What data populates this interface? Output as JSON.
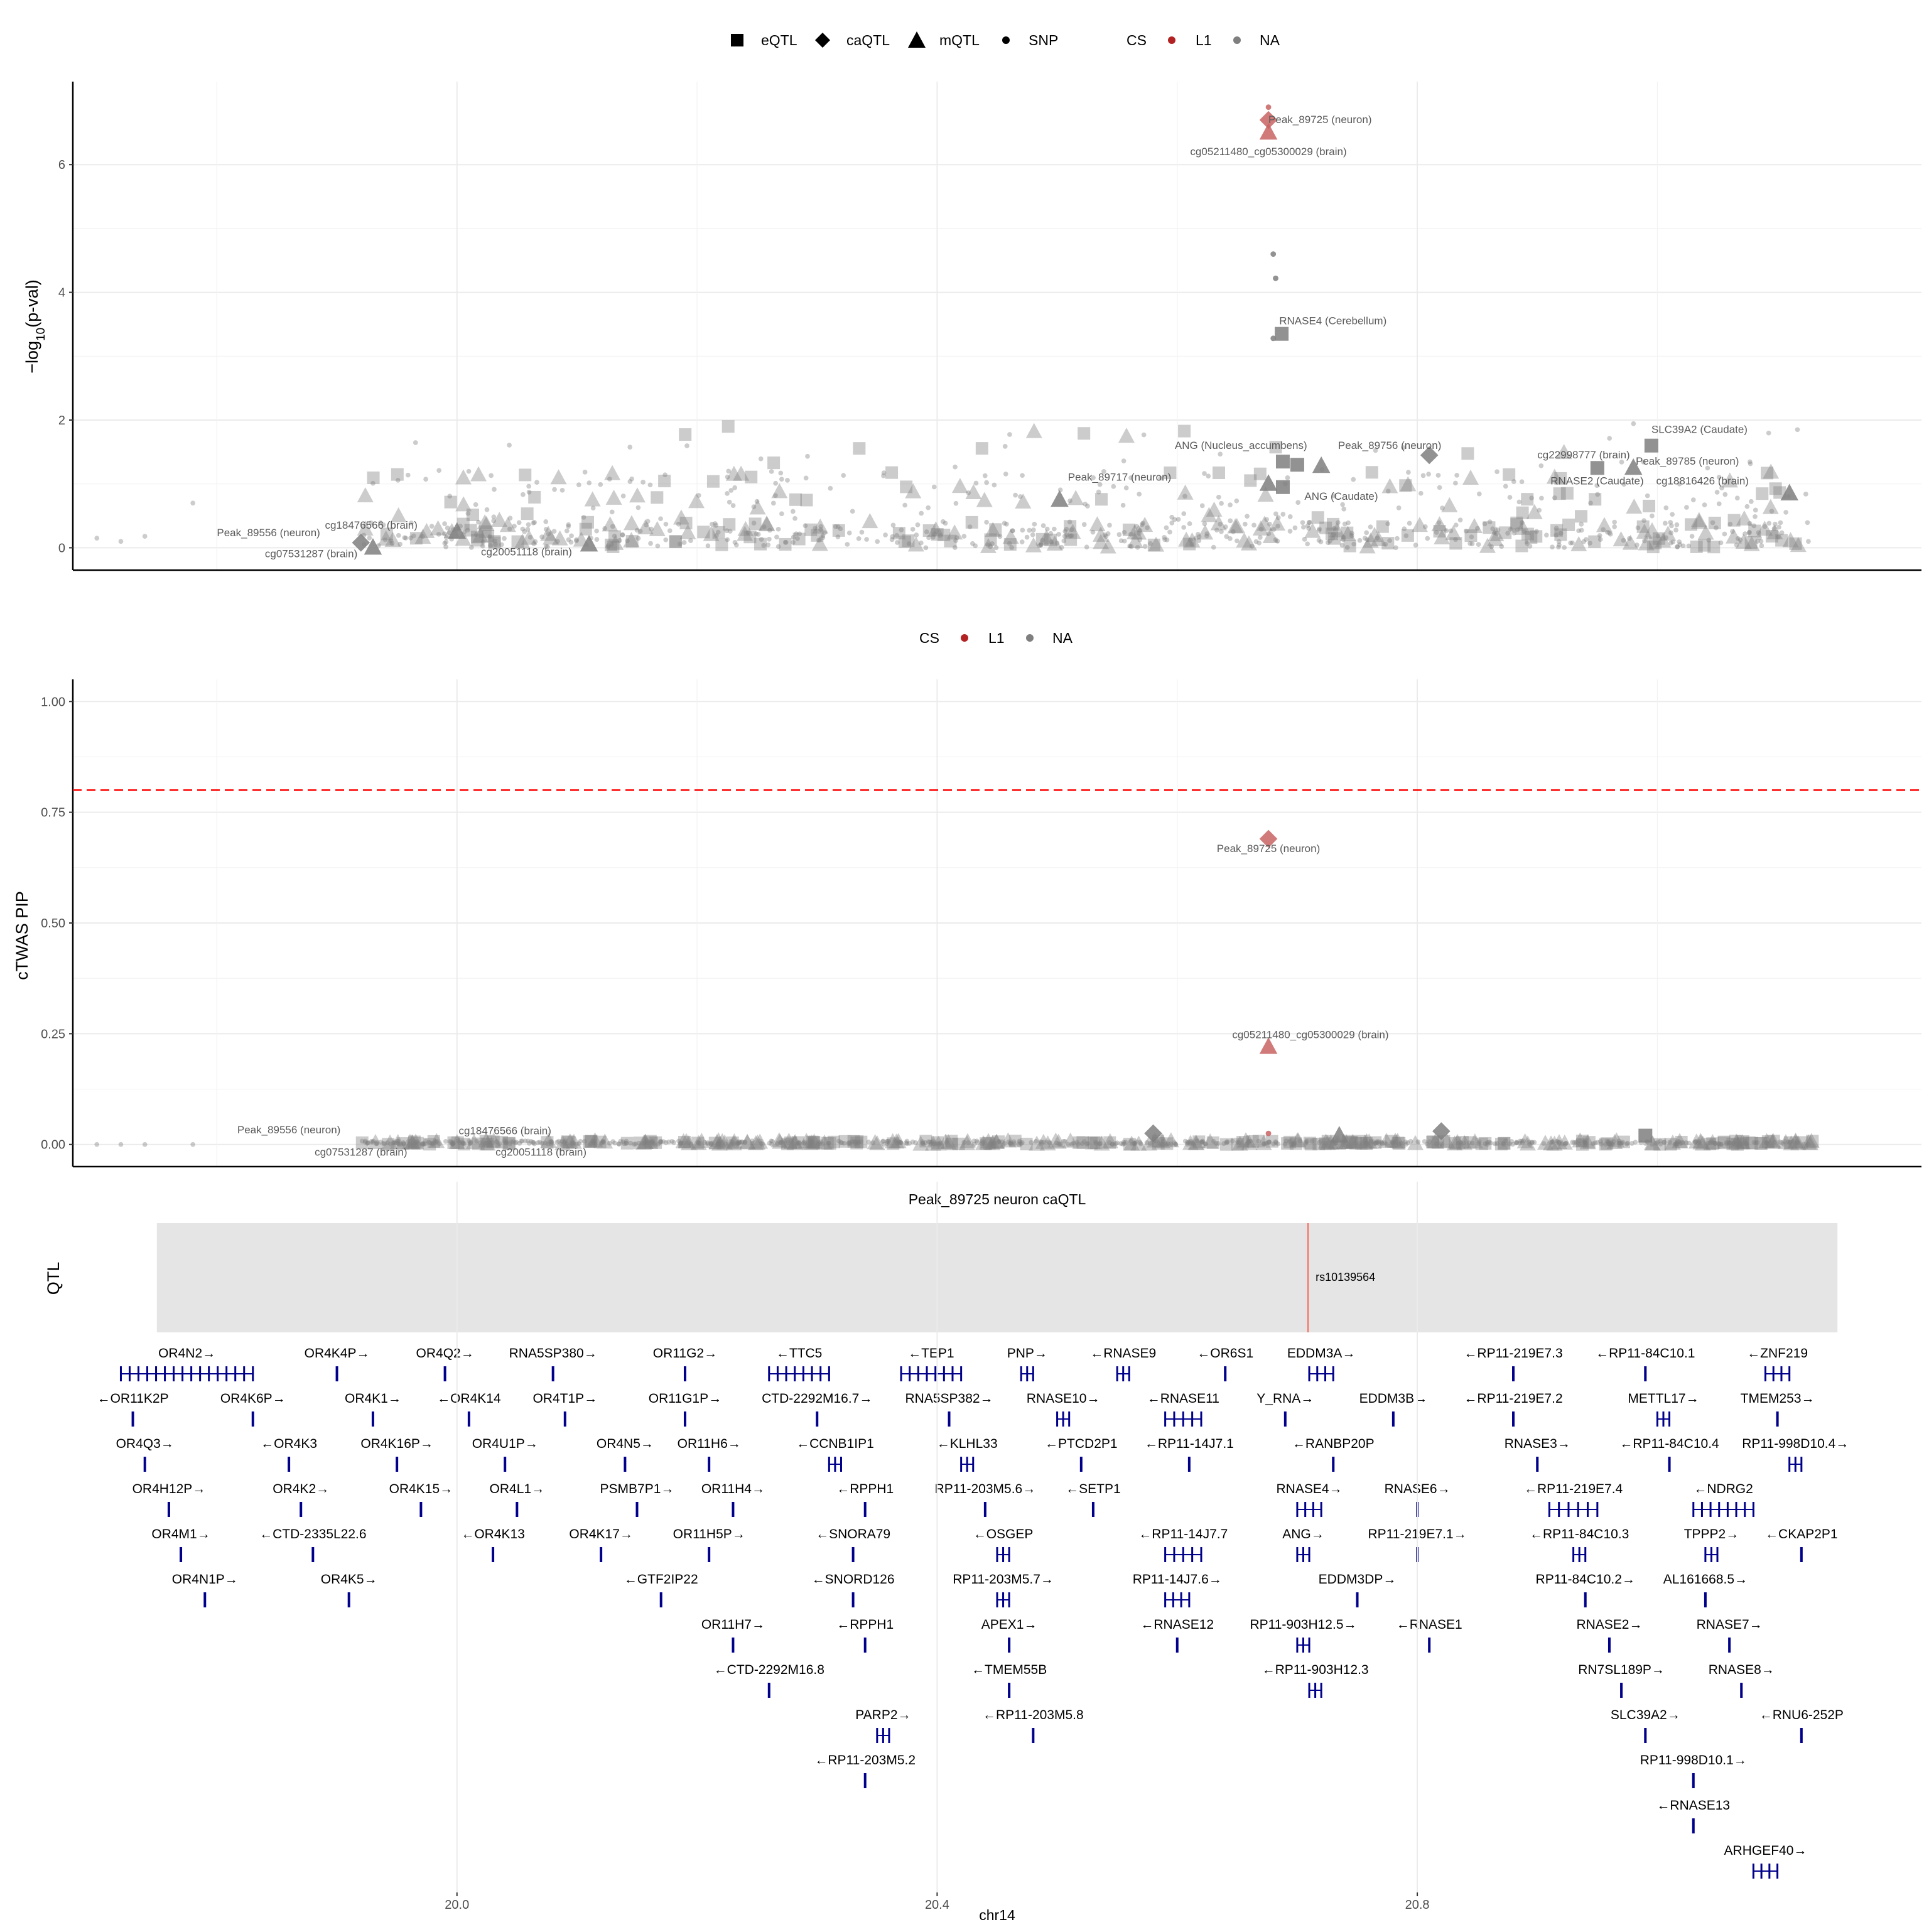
{
  "colors": {
    "cs_L1": "#b22222",
    "cs_NA": "#7f7f7f",
    "threshold": "#ff0000",
    "qtl_bg": "#e5e5e5",
    "gene": "#00008b",
    "grid": "#ebebeb"
  },
  "legend_top": {
    "shape_items": [
      {
        "shape": "square",
        "label": "eQTL"
      },
      {
        "shape": "diamond",
        "label": "caQTL"
      },
      {
        "shape": "triangle",
        "label": "mQTL"
      },
      {
        "shape": "circle",
        "label": "SNP"
      }
    ],
    "cs_title": "CS",
    "cs_items": [
      {
        "label": "L1",
        "color": "#b22222"
      },
      {
        "label": "NA",
        "color": "#7f7f7f"
      }
    ]
  },
  "legend_mid": {
    "cs_title": "CS",
    "cs_items": [
      {
        "label": "L1",
        "color": "#b22222"
      },
      {
        "label": "NA",
        "color": "#7f7f7f"
      }
    ]
  },
  "chart_data": [
    {
      "type": "scatter",
      "panel": "pval",
      "ylabel_main": "−log",
      "ylabel_sub": "10",
      "ylabel_end": "(p-val)",
      "xlim": [
        19.68,
        21.22
      ],
      "ylim": [
        -0.35,
        7.3
      ],
      "yticks": [
        0,
        2,
        4,
        6
      ],
      "ytick_labels": [
        "0",
        "2",
        "4",
        "6"
      ],
      "xgrid_major": [
        20.0,
        20.4,
        20.8
      ],
      "xgrid_minor": [
        19.8,
        20.2,
        20.6,
        21.0
      ],
      "grid": true,
      "labelled_points": [
        {
          "x": 20.676,
          "y": 6.9,
          "shape": "circle",
          "cs": "L1"
        },
        {
          "x": 20.676,
          "y": 6.7,
          "shape": "diamond",
          "cs": "L1"
        },
        {
          "x": 20.676,
          "y": 6.5,
          "shape": "triangle",
          "cs": "L1"
        },
        {
          "x": 20.68,
          "y": 4.6,
          "shape": "circle",
          "cs": "NA"
        },
        {
          "x": 20.682,
          "y": 4.22,
          "shape": "circle",
          "cs": "NA"
        },
        {
          "x": 20.687,
          "y": 3.35,
          "shape": "square",
          "cs": "NA"
        },
        {
          "x": 20.68,
          "y": 3.28,
          "shape": "circle",
          "cs": "NA"
        },
        {
          "x": 20.688,
          "y": 1.35,
          "shape": "square",
          "cs": "NA"
        },
        {
          "x": 20.676,
          "y": 1.0,
          "shape": "triangle",
          "cs": "NA"
        },
        {
          "x": 20.688,
          "y": 0.95,
          "shape": "square",
          "cs": "NA"
        },
        {
          "x": 20.502,
          "y": 0.75,
          "shape": "triangle",
          "cs": "NA"
        },
        {
          "x": 20.81,
          "y": 1.45,
          "shape": "diamond",
          "cs": "NA"
        },
        {
          "x": 20.995,
          "y": 1.6,
          "shape": "square",
          "cs": "NA"
        },
        {
          "x": 20.95,
          "y": 1.25,
          "shape": "square",
          "cs": "NA"
        },
        {
          "x": 20.98,
          "y": 1.25,
          "shape": "triangle",
          "cs": "NA"
        },
        {
          "x": 21.11,
          "y": 0.85,
          "shape": "triangle",
          "cs": "NA"
        },
        {
          "x": 20.72,
          "y": 1.28,
          "shape": "triangle",
          "cs": "NA"
        },
        {
          "x": 20.7,
          "y": 1.3,
          "shape": "square",
          "cs": "NA"
        },
        {
          "x": 19.92,
          "y": 0.08,
          "shape": "diamond",
          "cs": "NA"
        },
        {
          "x": 19.93,
          "y": 0.0,
          "shape": "triangle",
          "cs": "NA"
        },
        {
          "x": 20.0,
          "y": 0.25,
          "shape": "triangle",
          "cs": "NA"
        },
        {
          "x": 20.11,
          "y": 0.05,
          "shape": "triangle",
          "cs": "NA"
        }
      ],
      "annotations": [
        {
          "x": 20.676,
          "y": 6.65,
          "text": "Peak_89725 (neuron)",
          "anchor": "start"
        },
        {
          "x": 20.676,
          "y": 6.15,
          "text": "cg05211480_cg05300029 (brain)",
          "anchor": "middle"
        },
        {
          "x": 20.685,
          "y": 3.5,
          "text": "RNASE4 (Cerebellum)",
          "anchor": "start"
        },
        {
          "x": 20.598,
          "y": 1.55,
          "text": "ANG (Nucleus_accumbens)",
          "anchor": "start"
        },
        {
          "x": 20.734,
          "y": 1.55,
          "text": "Peak_89756 (neuron)",
          "anchor": "start"
        },
        {
          "x": 20.509,
          "y": 1.05,
          "text": "Peak_89717 (neuron)",
          "anchor": "start"
        },
        {
          "x": 20.706,
          "y": 0.75,
          "text": "ANG (Caudate)",
          "anchor": "start"
        },
        {
          "x": 20.9,
          "y": 1.4,
          "text": "cg22998777 (brain)",
          "anchor": "start"
        },
        {
          "x": 20.995,
          "y": 1.8,
          "text": "SLC39A2 (Caudate)",
          "anchor": "start"
        },
        {
          "x": 20.982,
          "y": 1.3,
          "text": "Peak_89785 (neuron)",
          "anchor": "start"
        },
        {
          "x": 20.911,
          "y": 0.99,
          "text": "RNASE2 (Caudate)",
          "anchor": "start"
        },
        {
          "x": 20.999,
          "y": 0.99,
          "text": "cg18816426 (brain)",
          "anchor": "start"
        },
        {
          "x": 19.8,
          "y": 0.18,
          "text": "Peak_89556 (neuron)",
          "anchor": "start"
        },
        {
          "x": 19.89,
          "y": 0.3,
          "text": "cg18476566 (brain)",
          "anchor": "start"
        },
        {
          "x": 19.84,
          "y": -0.15,
          "text": "cg07531287 (brain)",
          "anchor": "start"
        },
        {
          "x": 20.02,
          "y": -0.12,
          "text": "cg20051118 (brain)",
          "anchor": "start"
        }
      ]
    },
    {
      "type": "scatter",
      "panel": "pip",
      "ylabel": "cTWAS PIP",
      "xlim": [
        19.68,
        21.22
      ],
      "ylim": [
        -0.05,
        1.05
      ],
      "yticks": [
        0,
        0.25,
        0.5,
        0.75,
        1.0
      ],
      "ytick_labels": [
        "0.00",
        "0.25",
        "0.50",
        "0.75",
        "1.00"
      ],
      "threshold": 0.8,
      "grid": true,
      "labelled_points": [
        {
          "x": 20.676,
          "y": 0.69,
          "shape": "diamond",
          "cs": "L1"
        },
        {
          "x": 20.676,
          "y": 0.22,
          "shape": "triangle",
          "cs": "L1"
        },
        {
          "x": 20.676,
          "y": 0.025,
          "shape": "circle",
          "cs": "L1"
        },
        {
          "x": 20.58,
          "y": 0.025,
          "shape": "diamond",
          "cs": "NA"
        },
        {
          "x": 20.82,
          "y": 0.03,
          "shape": "diamond",
          "cs": "NA"
        },
        {
          "x": 20.735,
          "y": 0.02,
          "shape": "triangle",
          "cs": "NA"
        },
        {
          "x": 20.99,
          "y": 0.02,
          "shape": "square",
          "cs": "NA"
        }
      ],
      "annotations": [
        {
          "x": 20.676,
          "y": 0.66,
          "text": "Peak_89725 (neuron)",
          "anchor": "middle"
        },
        {
          "x": 20.711,
          "y": 0.24,
          "text": "cg05211480_cg05300029 (brain)",
          "anchor": "middle"
        },
        {
          "x": 19.86,
          "y": 0.025,
          "text": "Peak_89556 (neuron)",
          "anchor": "middle"
        },
        {
          "x": 20.04,
          "y": 0.023,
          "text": "cg18476566 (brain)",
          "anchor": "middle"
        },
        {
          "x": 19.92,
          "y": -0.025,
          "text": "cg07531287 (brain)",
          "anchor": "middle"
        },
        {
          "x": 20.07,
          "y": -0.025,
          "text": "cg20051118 (brain)",
          "anchor": "middle"
        }
      ]
    },
    {
      "type": "track",
      "panel": "qtl",
      "title": "Peak_89725 neuron caQTL",
      "ylabel": "QTL",
      "range": [
        19.75,
        21.15
      ],
      "snp_x": 20.709,
      "snp_label": "rs10139564"
    }
  ],
  "genes": {
    "rows": [
      [
        [
          "OR4N2→",
          19.72,
          19.83
        ],
        [
          "OR4K4P→",
          19.9,
          19.9
        ],
        [
          "OR4Q2→",
          19.99,
          19.99
        ],
        [
          "RNA5SP380→",
          20.08,
          20.08
        ],
        [
          "OR11G2→",
          20.19,
          20.19
        ],
        [
          "←TTC5",
          20.26,
          20.31
        ],
        [
          "←TEP1",
          20.37,
          20.42
        ],
        [
          "PNP→",
          20.47,
          20.48
        ],
        [
          "←RNASE9",
          20.55,
          20.56
        ],
        [
          "←OR6S1",
          20.64,
          20.64
        ],
        [
          "EDDM3A→",
          20.71,
          20.73
        ],
        [
          "←RP11-219E7.3",
          20.88,
          20.88
        ],
        [
          "←RP11-84C10.1",
          20.99,
          20.99
        ],
        [
          "←ZNF219",
          21.09,
          21.11
        ]
      ],
      [
        [
          "←OR11K2P",
          19.73,
          19.73
        ],
        [
          "OR4K6P→",
          19.83,
          19.83
        ],
        [
          "OR4K1→",
          19.93,
          19.93
        ],
        [
          "←OR4K14",
          20.01,
          20.01
        ],
        [
          "OR4T1P→",
          20.09,
          20.09
        ],
        [
          "OR11G1P→",
          20.19,
          20.19
        ],
        [
          "CTD-2292M16.7→",
          20.3,
          20.3
        ],
        [
          "RNA5SP382→",
          20.41,
          20.41
        ],
        [
          "RNASE10→",
          20.5,
          20.51
        ],
        [
          "←RNASE11",
          20.59,
          20.62
        ],
        [
          "Y_RNA→",
          20.69,
          20.69
        ],
        [
          "EDDM3B→",
          20.78,
          20.78
        ],
        [
          "←RP11-219E7.2",
          20.88,
          20.88
        ],
        [
          "METTL17→",
          21.0,
          21.01
        ],
        [
          "TMEM253→",
          21.1,
          21.1
        ]
      ],
      [
        [
          "OR4Q3→",
          19.74,
          19.74
        ],
        [
          "←OR4K3",
          19.86,
          19.86
        ],
        [
          "OR4K16P→",
          19.95,
          19.95
        ],
        [
          "OR4U1P→",
          20.04,
          20.04
        ],
        [
          "OR4N5→",
          20.14,
          20.14
        ],
        [
          "OR11H6→",
          20.21,
          20.21
        ],
        [
          "←CCNB1IP1",
          20.31,
          20.32
        ],
        [
          "←KLHL33",
          20.42,
          20.43
        ],
        [
          "←PTCD2P1",
          20.52,
          20.52
        ],
        [
          "←RP11-14J7.1",
          20.61,
          20.61
        ],
        [
          "←RANBP20P",
          20.73,
          20.73
        ],
        [
          "RNASE3→",
          20.9,
          20.9
        ],
        [
          "←RP11-84C10.4",
          21.01,
          21.01
        ],
        [
          "RP11-998D10.4→",
          21.11,
          21.12
        ]
      ],
      [
        [
          "OR4H12P→",
          19.76,
          19.76
        ],
        [
          "OR4K2→",
          19.87,
          19.87
        ],
        [
          "OR4K15→",
          19.97,
          19.97
        ],
        [
          "OR4L1→",
          20.05,
          20.05
        ],
        [
          "PSMB7P1→",
          20.15,
          20.15
        ],
        [
          "OR11H4→",
          20.23,
          20.23
        ],
        [
          "←RPPH1",
          20.34,
          20.34
        ],
        [
          "RP11-203M5.6→",
          20.44,
          20.44
        ],
        [
          "←SETP1",
          20.53,
          20.53
        ],
        [
          "RNASE4→",
          20.7,
          20.72
        ],
        [
          "RNASE6→",
          20.8,
          20.8
        ],
        [
          "←RP11-219E7.4",
          20.91,
          20.95
        ],
        [
          "←NDRG2",
          21.03,
          21.08
        ]
      ],
      [
        [
          "OR4M1→",
          19.77,
          19.77
        ],
        [
          "←CTD-2335L22.6",
          19.88,
          19.88
        ],
        [
          "←OR4K13",
          20.03,
          20.03
        ],
        [
          "OR4K17→",
          20.12,
          20.12
        ],
        [
          "OR11H5P→",
          20.21,
          20.21
        ],
        [
          "←SNORA79",
          20.33,
          20.33
        ],
        [
          "←OSGEP",
          20.45,
          20.46
        ],
        [
          "←RP11-14J7.7",
          20.59,
          20.62
        ],
        [
          "ANG→",
          20.7,
          20.71
        ],
        [
          "RP11-219E7.1→",
          20.8,
          20.8
        ],
        [
          "←RP11-84C10.3",
          20.93,
          20.94
        ],
        [
          "TPPP2→",
          21.04,
          21.05
        ],
        [
          "←CKAP2P1",
          21.12,
          21.12
        ]
      ],
      [
        [
          "OR4N1P→",
          19.79,
          19.79
        ],
        [
          "OR4K5→",
          19.91,
          19.91
        ],
        [
          "←GTF2IP22",
          20.17,
          20.17
        ],
        [
          "←SNORD126",
          20.33,
          20.33
        ],
        [
          "RP11-203M5.7→",
          20.45,
          20.46
        ],
        [
          "RP11-14J7.6→",
          20.59,
          20.61
        ],
        [
          "EDDM3DP→",
          20.75,
          20.75
        ],
        [
          "RP11-84C10.2→",
          20.94,
          20.94
        ],
        [
          "AL161668.5→",
          21.04,
          21.04
        ]
      ],
      [
        [
          "OR11H7→",
          20.23,
          20.23
        ],
        [
          "←RPPH1",
          20.34,
          20.34
        ],
        [
          "APEX1→",
          20.46,
          20.46
        ],
        [
          "←RNASE12",
          20.6,
          20.6
        ],
        [
          "RP11-903H12.5→",
          20.7,
          20.71
        ],
        [
          "←RNASE1",
          20.81,
          20.81
        ],
        [
          "RNASE2→",
          20.96,
          20.96
        ],
        [
          "RNASE7→",
          21.06,
          21.06
        ]
      ],
      [
        [
          "←CTD-2292M16.8",
          20.26,
          20.26
        ],
        [
          "←TMEM55B",
          20.46,
          20.46
        ],
        [
          "←RP11-903H12.3",
          20.71,
          20.72
        ],
        [
          "RN7SL189P→",
          20.97,
          20.97
        ],
        [
          "RNASE8→",
          21.07,
          21.07
        ]
      ],
      [
        [
          "PARP2→",
          20.35,
          20.36
        ],
        [
          "←RP11-203M5.8",
          20.48,
          20.48
        ],
        [
          "SLC39A2→",
          20.99,
          20.99
        ],
        [
          "←RNU6-252P",
          21.12,
          21.12
        ]
      ],
      [
        [
          "←RP11-203M5.2",
          20.34,
          20.34
        ],
        [
          "RP11-998D10.1→",
          21.03,
          21.03
        ]
      ],
      [
        [
          "←RNASE13",
          21.03,
          21.03
        ]
      ],
      [
        [
          "ARHGEF40→",
          21.08,
          21.1
        ]
      ]
    ]
  },
  "xaxis": {
    "label": "chr14",
    "ticks": [
      20.0,
      20.4,
      20.8
    ],
    "tick_labels": [
      "20.0",
      "20.4",
      "20.8"
    ]
  }
}
